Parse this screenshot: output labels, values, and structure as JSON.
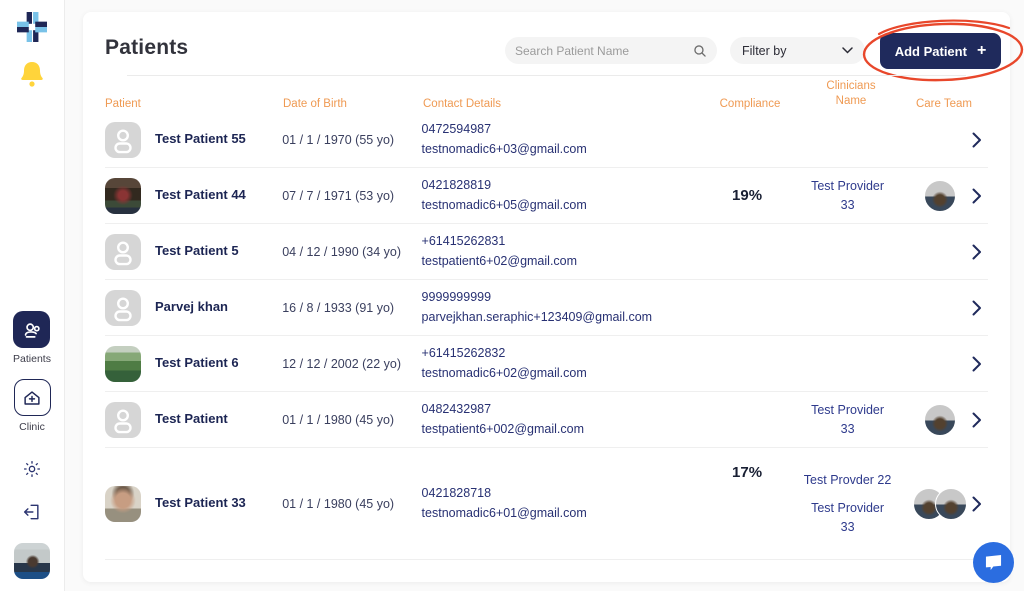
{
  "header": {
    "title": "Patients",
    "search_placeholder": "Search Patient Name",
    "filter_label": "Filter by",
    "add_button_label": "Add Patient",
    "add_button_plus": "+"
  },
  "sidebar": {
    "items": [
      {
        "label": "Patients",
        "icon": "patients-icon",
        "active": true
      },
      {
        "label": "Clinic",
        "icon": "clinic-icon",
        "active": false
      }
    ],
    "icons": [
      "app-logo-icon",
      "notification-bell-icon",
      "settings-gear-icon",
      "logout-icon",
      "user-avatar"
    ]
  },
  "table": {
    "columns": [
      "Patient",
      "Date of Birth",
      "Contact Details",
      "Compliance",
      "Clinicians Name",
      "Care Team"
    ],
    "rows": [
      {
        "name": "Test Patient 55",
        "dob": "01 / 1 / 1970 (55 yo)",
        "phone": "0472594987",
        "email": "testnomadic6+03@gmail.com",
        "compliance": "",
        "clinicians": [],
        "care_team": 0,
        "avatar": "placeholder"
      },
      {
        "name": "Test Patient 44",
        "dob": "07 / 7 / 1971 (53 yo)",
        "phone": "0421828819",
        "email": "testnomadic6+05@gmail.com",
        "compliance": "19%",
        "clinicians": [
          "Test Provider 33"
        ],
        "care_team": 1,
        "avatar": "bus"
      },
      {
        "name": "Test Patient 5",
        "dob": "04 / 12 / 1990 (34 yo)",
        "phone": "+61415262831",
        "email": "testpatient6+02@gmail.com",
        "compliance": "",
        "clinicians": [],
        "care_team": 0,
        "avatar": "placeholder"
      },
      {
        "name": "Parvej khan",
        "dob": "16 / 8 / 1933 (91 yo)",
        "phone": "9999999999",
        "email": "parvejkhan.seraphic+123409@gmail.com",
        "compliance": "",
        "clinicians": [],
        "care_team": 0,
        "avatar": "placeholder"
      },
      {
        "name": "Test Patient 6",
        "dob": "12 / 12 / 2002 (22 yo)",
        "phone": "+61415262832",
        "email": "testnomadic6+02@gmail.com",
        "compliance": "",
        "clinicians": [],
        "care_team": 0,
        "avatar": "park"
      },
      {
        "name": "Test Patient",
        "dob": "01 / 1 / 1980 (45 yo)",
        "phone": "0482432987",
        "email": "testpatient6+002@gmail.com",
        "compliance": "",
        "clinicians": [
          "Test Provider 33"
        ],
        "care_team": 1,
        "avatar": "placeholder"
      },
      {
        "name": "Test Patient 33",
        "dob": "01 / 1 / 1980 (45 yo)",
        "phone": "0421828718",
        "email": "testnomadic6+01@gmail.com",
        "compliance": "17%",
        "clinicians": [
          "Test Provder 22",
          "Test Provider 33"
        ],
        "care_team": 2,
        "avatar": "portrait"
      }
    ]
  },
  "annotation": {
    "shape": "hand-drawn-ellipse",
    "around": "Add Patient button",
    "color": "#e8472b"
  },
  "colors": {
    "navy": "#1f2a5c",
    "orange_header": "#ef9a53",
    "bell_yellow": "#ffd43b",
    "logo_blue": "#79c2e8",
    "chat_blue": "#2b6de0",
    "annotation_red": "#e8472b"
  }
}
